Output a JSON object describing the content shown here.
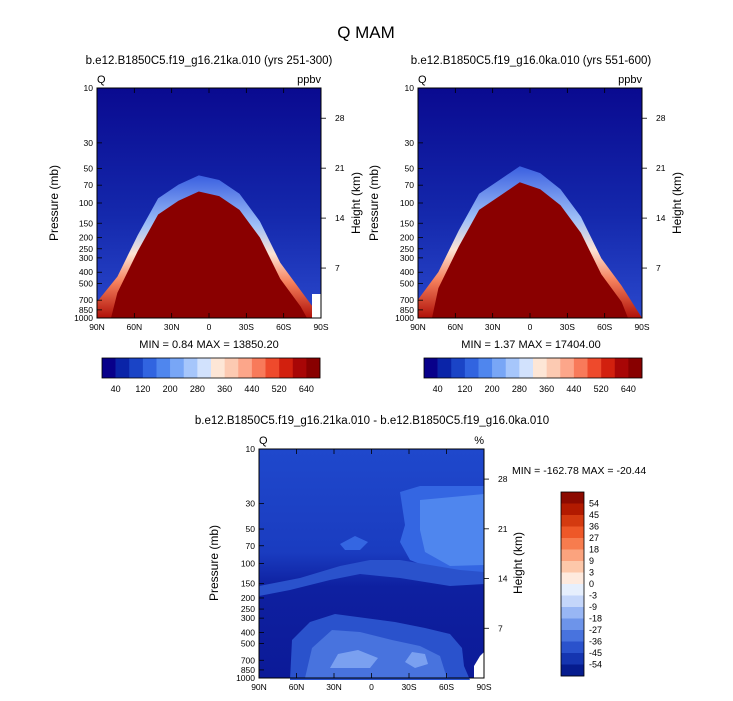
{
  "title": "Q MAM",
  "panels": [
    {
      "id": "p1",
      "subtitle": "b.e12.B1850C5.f19_g16.21ka.010 (yrs 251-300)",
      "left_label": "Q",
      "right_label": "ppbv",
      "minmax": "MIN =   0.84   MAX = 13850.20",
      "ridge": [
        0.93,
        0.82,
        0.64,
        0.48,
        0.42,
        0.38,
        0.4,
        0.46,
        0.58,
        0.76,
        0.88,
        1.0
      ]
    },
    {
      "id": "p2",
      "subtitle": "b.e12.B1850C5.f19_g16.0ka.010 (yrs 551-600)",
      "left_label": "Q",
      "right_label": "ppbv",
      "minmax": "MIN =   1.37   MAX = 17404.00",
      "ridge": [
        0.92,
        0.8,
        0.62,
        0.46,
        0.4,
        0.34,
        0.37,
        0.44,
        0.56,
        0.74,
        0.86,
        1.0
      ]
    },
    {
      "id": "p3",
      "subtitle": "b.e12.B1850C5.f19_g16.21ka.010 - b.e12.B1850C5.f19_g16.0ka.010",
      "left_label": "Q",
      "right_label": "%",
      "minmax": "MIN = -162.78   MAX = -20.44"
    }
  ],
  "chart_data": [
    {
      "type": "heatmap",
      "title": "b.e12.B1850C5.f19_g16.21ka.010 (yrs 251-300)",
      "xlabel": "",
      "ylabel": "Pressure (mb)",
      "y2label": "Height (km)",
      "x_ticks": [
        "90N",
        "60N",
        "30N",
        "0",
        "30S",
        "60S",
        "90S"
      ],
      "y_ticks": [
        10,
        30,
        50,
        70,
        100,
        150,
        200,
        250,
        300,
        400,
        500,
        700,
        850,
        1000
      ],
      "y2_ticks": [
        28,
        21,
        14,
        7
      ],
      "units": "ppbv",
      "min": 0.84,
      "max": 13850.2,
      "colorbar_labels": [
        "40",
        "120",
        "200",
        "280",
        "360",
        "440",
        "520",
        "640"
      ]
    },
    {
      "type": "heatmap",
      "title": "b.e12.B1850C5.f19_g16.0ka.010 (yrs 551-600)",
      "xlabel": "",
      "ylabel": "Pressure (mb)",
      "y2label": "Height (km)",
      "x_ticks": [
        "90N",
        "60N",
        "30N",
        "0",
        "30S",
        "60S",
        "90S"
      ],
      "y_ticks": [
        10,
        30,
        50,
        70,
        100,
        150,
        200,
        250,
        300,
        400,
        500,
        700,
        850,
        1000
      ],
      "y2_ticks": [
        28,
        21,
        14,
        7
      ],
      "units": "ppbv",
      "min": 1.37,
      "max": 17404.0,
      "colorbar_labels": [
        "40",
        "120",
        "200",
        "280",
        "360",
        "440",
        "520",
        "640"
      ]
    },
    {
      "type": "heatmap",
      "title": "b.e12.B1850C5.f19_g16.21ka.010 - b.e12.B1850C5.f19_g16.0ka.010",
      "xlabel": "",
      "ylabel": "Pressure (mb)",
      "y2label": "Height (km)",
      "x_ticks": [
        "90N",
        "60N",
        "30N",
        "0",
        "30S",
        "60S",
        "90S"
      ],
      "y_ticks": [
        10,
        30,
        50,
        70,
        100,
        150,
        200,
        250,
        300,
        400,
        500,
        700,
        850,
        1000
      ],
      "y2_ticks": [
        28,
        21,
        14,
        7
      ],
      "units": "%",
      "min": -162.78,
      "max": -20.44,
      "colorbar_labels": [
        "54",
        "45",
        "36",
        "27",
        "18",
        "9",
        "3",
        "0",
        "-3",
        "-9",
        "-18",
        "-27",
        "-36",
        "-45",
        "-54"
      ]
    }
  ],
  "colors": {
    "top_palette": [
      "#08008a",
      "#0a24a8",
      "#1a44c6",
      "#3164e0",
      "#4f86ee",
      "#78a6f6",
      "#a6c6fb",
      "#d2e2fd",
      "#fde6d6",
      "#fccab2",
      "#fca68a",
      "#f87a5a",
      "#ee4a2c",
      "#d2200e",
      "#a80606",
      "#880000"
    ],
    "diff_palette": [
      "#8c0a00",
      "#b21a00",
      "#d43a10",
      "#ee5828",
      "#f77c4e",
      "#fba37e",
      "#fdc8aa",
      "#feeade",
      "#e6effd",
      "#c4d6fa",
      "#98b6f4",
      "#6d94ea",
      "#4873de",
      "#2a52cc",
      "#1535b0",
      "#061c8e"
    ]
  }
}
